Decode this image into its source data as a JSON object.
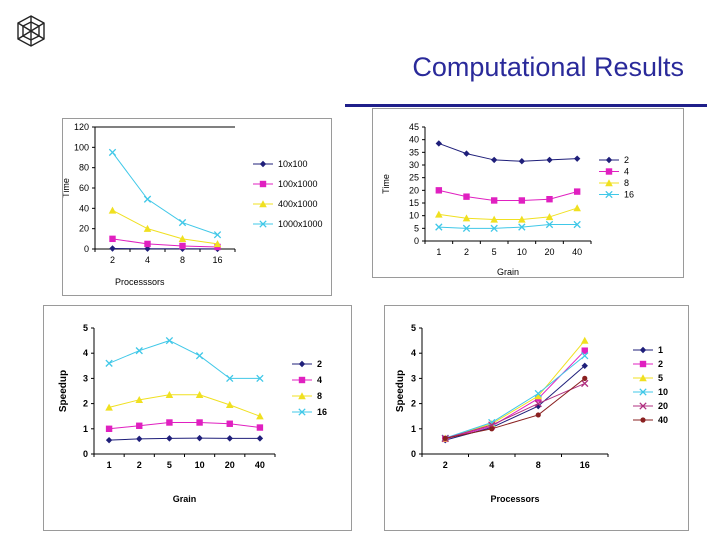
{
  "slide": {
    "title": "Computational Results"
  },
  "chart_data": [
    {
      "id": "time-vs-processors",
      "type": "line",
      "title": "",
      "xlabel": "Processsors",
      "ylabel": "Time",
      "categories": [
        "2",
        "4",
        "8",
        "16"
      ],
      "ylim": [
        0,
        120
      ],
      "yticks": [
        0,
        20,
        40,
        60,
        80,
        100,
        120
      ],
      "grid": false,
      "legend_position": "right",
      "series": [
        {
          "name": "10x100",
          "color": "#1f1f7a",
          "marker": "diamond",
          "values": [
            0.5,
            0.3,
            0.2,
            0.1
          ]
        },
        {
          "name": "100x1000",
          "color": "#e020c0",
          "marker": "square",
          "values": [
            10,
            5,
            3,
            2
          ]
        },
        {
          "name": "400x1000",
          "color": "#f0e020",
          "marker": "triangle",
          "values": [
            38,
            20,
            10,
            5
          ]
        },
        {
          "name": "1000x1000",
          "color": "#40c8e8",
          "marker": "x",
          "values": [
            95,
            49,
            26,
            14
          ]
        }
      ]
    },
    {
      "id": "time-vs-grain",
      "type": "line",
      "title": "",
      "xlabel": "Grain",
      "ylabel": "Time",
      "categories": [
        "1",
        "2",
        "5",
        "10",
        "20",
        "40"
      ],
      "ylim": [
        0,
        45
      ],
      "yticks": [
        0,
        5,
        10,
        15,
        20,
        25,
        30,
        35,
        40,
        45
      ],
      "grid": false,
      "legend_position": "right",
      "series": [
        {
          "name": "2",
          "color": "#1f1f7a",
          "marker": "diamond",
          "values": [
            38.5,
            34.5,
            32,
            31.5,
            32,
            32.5
          ]
        },
        {
          "name": "4",
          "color": "#e020c0",
          "marker": "square",
          "values": [
            20,
            17.5,
            16,
            16,
            16.5,
            19.5
          ]
        },
        {
          "name": "8",
          "color": "#f0e020",
          "marker": "triangle",
          "values": [
            10.5,
            9,
            8.5,
            8.5,
            9.5,
            13
          ]
        },
        {
          "name": "16",
          "color": "#40c8e8",
          "marker": "x",
          "values": [
            5.5,
            5,
            5,
            5.5,
            6.5,
            6.5
          ]
        }
      ]
    },
    {
      "id": "speedup-vs-grain",
      "type": "line",
      "title": "",
      "xlabel": "Grain",
      "ylabel": "Speedup",
      "categories": [
        "1",
        "2",
        "5",
        "10",
        "20",
        "40"
      ],
      "ylim": [
        0,
        5
      ],
      "yticks": [
        0,
        1,
        2,
        3,
        4,
        5
      ],
      "grid": false,
      "legend_position": "right",
      "series": [
        {
          "name": "2",
          "color": "#1f1f7a",
          "marker": "diamond",
          "values": [
            0.55,
            0.6,
            0.62,
            0.63,
            0.62,
            0.62
          ]
        },
        {
          "name": "4",
          "color": "#e020c0",
          "marker": "square",
          "values": [
            1.0,
            1.12,
            1.25,
            1.25,
            1.2,
            1.05
          ]
        },
        {
          "name": "8",
          "color": "#f0e020",
          "marker": "triangle",
          "values": [
            1.85,
            2.15,
            2.35,
            2.35,
            1.95,
            1.5
          ]
        },
        {
          "name": "16",
          "color": "#40c8e8",
          "marker": "x",
          "values": [
            3.6,
            4.1,
            4.5,
            3.9,
            3.0,
            3.0
          ]
        }
      ]
    },
    {
      "id": "speedup-vs-processors",
      "type": "line",
      "title": "",
      "xlabel": "Processors",
      "ylabel": "Speedup",
      "categories": [
        "2",
        "4",
        "8",
        "16"
      ],
      "ylim": [
        0,
        5
      ],
      "yticks": [
        0,
        1,
        2,
        3,
        4,
        5
      ],
      "grid": false,
      "legend_position": "right",
      "series": [
        {
          "name": "1",
          "color": "#1f1f7a",
          "marker": "diamond",
          "values": [
            0.55,
            1.05,
            1.9,
            3.5
          ]
        },
        {
          "name": "2",
          "color": "#e020c0",
          "marker": "square",
          "values": [
            0.6,
            1.1,
            2.2,
            4.1
          ]
        },
        {
          "name": "5",
          "color": "#f0e020",
          "marker": "triangle",
          "values": [
            0.62,
            1.2,
            2.3,
            4.5
          ]
        },
        {
          "name": "10",
          "color": "#40c8e8",
          "marker": "x",
          "values": [
            0.63,
            1.25,
            2.4,
            3.9
          ]
        },
        {
          "name": "20",
          "color": "#b03080",
          "marker": "x",
          "values": [
            0.62,
            1.15,
            2.0,
            2.8
          ]
        },
        {
          "name": "40",
          "color": "#8a2020",
          "marker": "dot",
          "values": [
            0.62,
            1.0,
            1.55,
            3.0
          ]
        }
      ]
    }
  ]
}
